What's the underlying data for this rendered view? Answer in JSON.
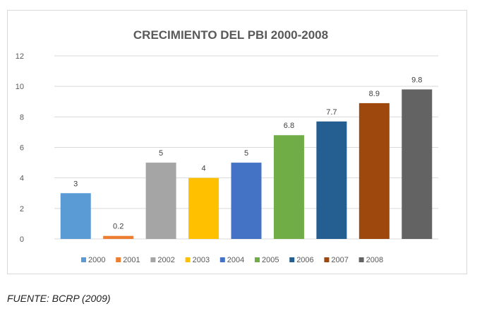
{
  "chart_data": {
    "type": "bar",
    "title": "CRECIMIENTO DEL PBI 2000-2008",
    "xlabel": "",
    "ylabel": "",
    "ylim": [
      0,
      12
    ],
    "yticks": [
      0,
      2,
      4,
      6,
      8,
      10,
      12
    ],
    "grid": true,
    "legend_position": "bottom",
    "categories": [
      "2000",
      "2001",
      "2002",
      "2003",
      "2004",
      "2005",
      "2006",
      "2007",
      "2008"
    ],
    "values": [
      3,
      0.2,
      5,
      4,
      5,
      6.8,
      7.7,
      8.9,
      9.8
    ],
    "data_labels": [
      "3",
      "0.2",
      "5",
      "4",
      "5",
      "6.8",
      "7.7",
      "8.9",
      "9.8"
    ],
    "colors": [
      "#5b9bd5",
      "#ed7d31",
      "#a5a5a5",
      "#ffc000",
      "#4472c4",
      "#70ad47",
      "#255e91",
      "#9e480e",
      "#636363"
    ]
  },
  "source_note": "FUENTE: BCRP (2009)"
}
